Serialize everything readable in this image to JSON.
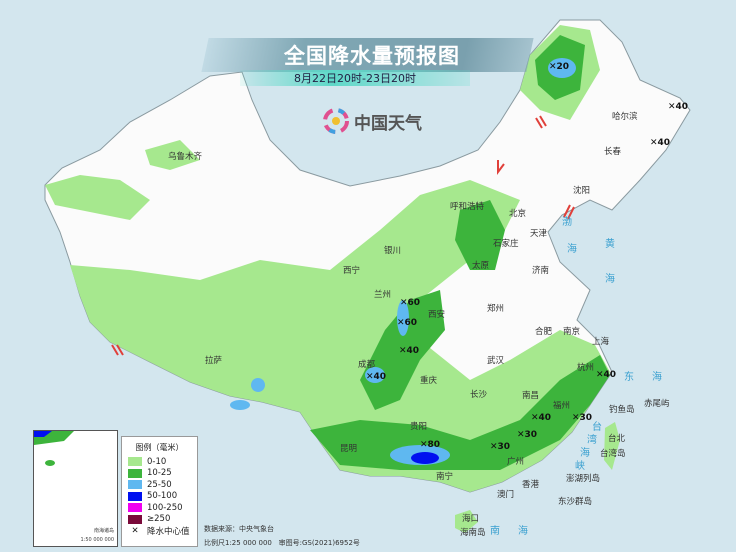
{
  "header": {
    "title": "全国降水量预报图",
    "subtitle": "8月22日20时-23日20时",
    "logo_text": "中国天气",
    "logo_icon": "china-weather-logo-icon"
  },
  "cities": [
    "乌鲁木齐",
    "哈尔滨",
    "长春",
    "沈阳",
    "呼和浩特",
    "北京",
    "天津",
    "石家庄",
    "太原",
    "济南",
    "银川",
    "西宁",
    "兰州",
    "西安",
    "郑州",
    "合肥",
    "南京",
    "上海",
    "杭州",
    "武汉",
    "成都",
    "重庆",
    "长沙",
    "南昌",
    "福州",
    "台北",
    "拉萨",
    "贵阳",
    "昆明",
    "南宁",
    "广州",
    "香港",
    "澳门",
    "海口"
  ],
  "islands": [
    "钓鱼岛",
    "赤尾屿",
    "台湾岛",
    "澎湖列岛",
    "东沙群岛",
    "海南岛"
  ],
  "seas": [
    "渤",
    "海",
    "黄",
    "海",
    "东",
    "海",
    "台",
    "湾",
    "海",
    "峡",
    "南",
    "海"
  ],
  "precip_centers": [
    "20",
    "40",
    "40",
    "60",
    "60",
    "40",
    "40",
    "80",
    "30",
    "30",
    "40",
    "30",
    "40"
  ],
  "legend": {
    "title": "图例（毫米）",
    "items": [
      {
        "label": "0-10",
        "color": "#a6e88e"
      },
      {
        "label": "10-25",
        "color": "#3db43c"
      },
      {
        "label": "25-50",
        "color": "#5fb8f0"
      },
      {
        "label": "50-100",
        "color": "#0010f0"
      },
      {
        "label": "100-250",
        "color": "#f000f0"
      },
      {
        "label": "≥250",
        "color": "#7a0a3a"
      }
    ],
    "center_label": "降水中心值"
  },
  "inset": {
    "label": "南海诸岛",
    "scale": "1:50 000 000"
  },
  "footer": {
    "source": "数据来源：中央气象台",
    "scale": "比例尺1:25 000 000",
    "approval": "审图号:GS(2021)6952号"
  }
}
